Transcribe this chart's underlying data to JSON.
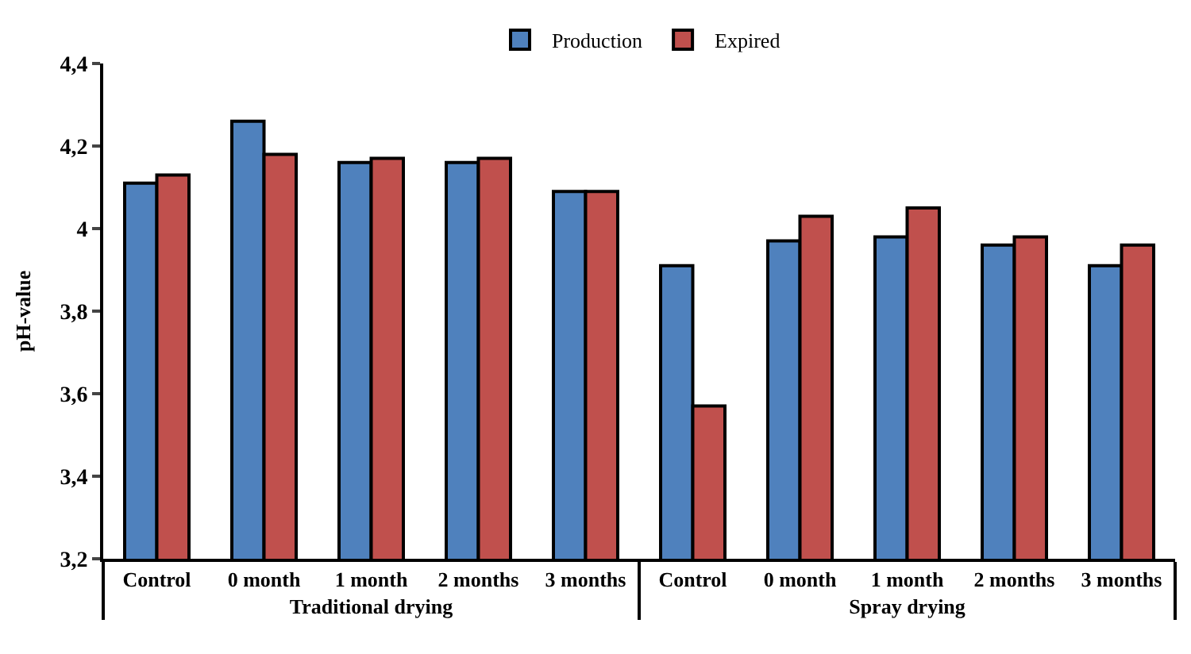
{
  "chart_data": {
    "type": "bar",
    "ylabel": "pH-value",
    "categories": [
      "Control",
      "0 month",
      "1 month",
      "2 months",
      "3 months",
      "Control",
      "0 month",
      "1 month",
      "2 months",
      "3 months"
    ],
    "series": [
      {
        "name": "Production",
        "color": "#4f81bd",
        "values": [
          4.11,
          4.26,
          4.16,
          4.16,
          4.09,
          3.91,
          3.97,
          3.98,
          3.96,
          3.91
        ]
      },
      {
        "name": "Expired",
        "color": "#c0504d",
        "values": [
          4.13,
          4.18,
          4.17,
          4.17,
          4.09,
          3.57,
          4.03,
          4.05,
          3.98,
          3.96
        ]
      }
    ],
    "ylim": [
      3.2,
      4.4
    ],
    "yticks": [
      {
        "value": 3.2,
        "label": "3,2"
      },
      {
        "value": 3.4,
        "label": "3,4"
      },
      {
        "value": 3.6,
        "label": "3,6"
      },
      {
        "value": 3.8,
        "label": "3,8"
      },
      {
        "value": 4,
        "label": "4"
      },
      {
        "value": 4.2,
        "label": "4,2"
      },
      {
        "value": 4.4,
        "label": "4,4"
      }
    ],
    "annotations": [
      "Traditional drying",
      "Spray drying"
    ],
    "legend": "top",
    "grid": false
  }
}
